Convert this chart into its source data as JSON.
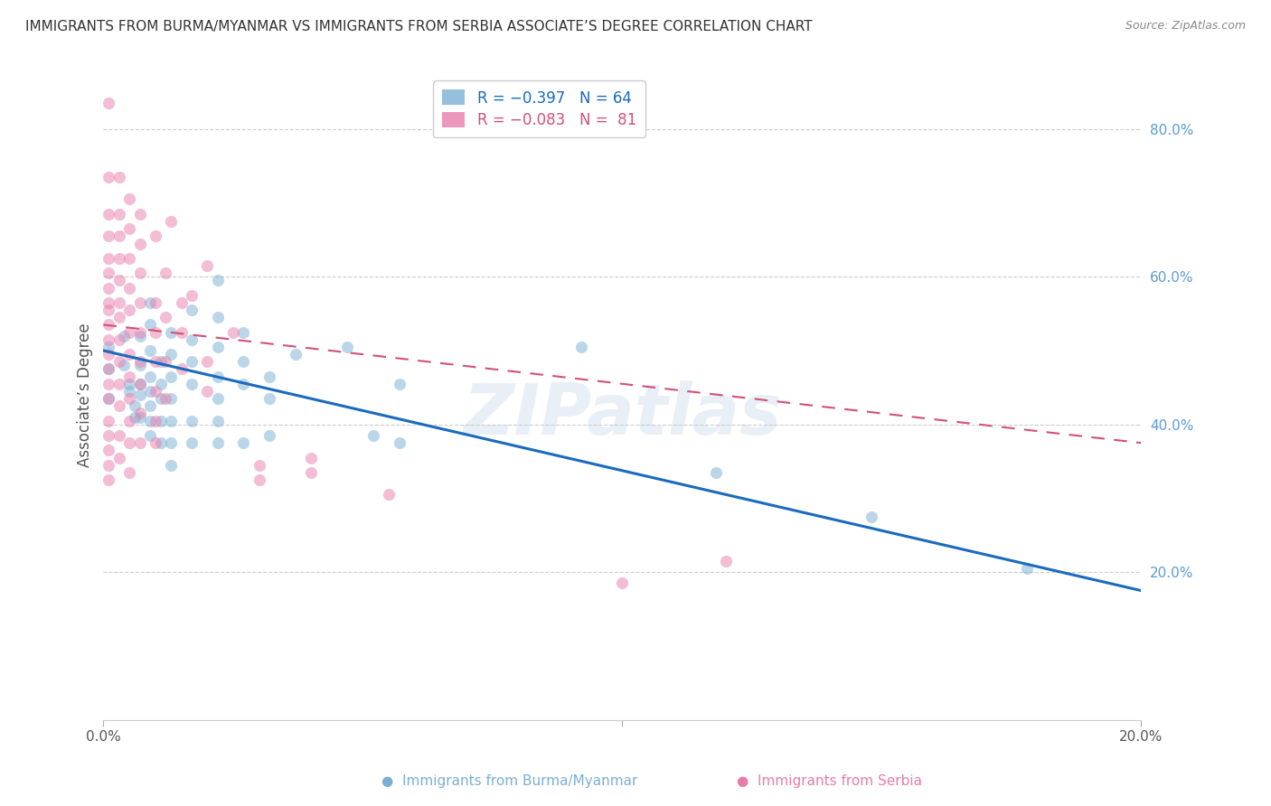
{
  "title": "IMMIGRANTS FROM BURMA/MYANMAR VS IMMIGRANTS FROM SERBIA ASSOCIATE’S DEGREE CORRELATION CHART",
  "source": "Source: ZipAtlas.com",
  "ylabel": "Associate’s Degree",
  "right_yticks": [
    20.0,
    40.0,
    60.0,
    80.0
  ],
  "x_min": 0.0,
  "x_max": 0.2,
  "y_min": 0.0,
  "y_max": 0.88,
  "blue_color": "#7bafd4",
  "pink_color": "#e87dac",
  "trendline_blue_color": "#1a6bbf",
  "trendline_pink_color": "#d44f7a",
  "trendline_blue": [
    [
      0.0,
      0.5
    ],
    [
      0.2,
      0.175
    ]
  ],
  "trendline_pink": [
    [
      0.0,
      0.535
    ],
    [
      0.2,
      0.375
    ]
  ],
  "watermark": "ZIPatlas",
  "blue_points": [
    [
      0.001,
      0.505
    ],
    [
      0.001,
      0.475
    ],
    [
      0.001,
      0.435
    ],
    [
      0.004,
      0.52
    ],
    [
      0.004,
      0.48
    ],
    [
      0.005,
      0.455
    ],
    [
      0.005,
      0.445
    ],
    [
      0.006,
      0.425
    ],
    [
      0.006,
      0.41
    ],
    [
      0.007,
      0.52
    ],
    [
      0.007,
      0.48
    ],
    [
      0.007,
      0.455
    ],
    [
      0.007,
      0.44
    ],
    [
      0.007,
      0.41
    ],
    [
      0.009,
      0.565
    ],
    [
      0.009,
      0.535
    ],
    [
      0.009,
      0.5
    ],
    [
      0.009,
      0.465
    ],
    [
      0.009,
      0.445
    ],
    [
      0.009,
      0.425
    ],
    [
      0.009,
      0.405
    ],
    [
      0.009,
      0.385
    ],
    [
      0.011,
      0.485
    ],
    [
      0.011,
      0.455
    ],
    [
      0.011,
      0.435
    ],
    [
      0.011,
      0.405
    ],
    [
      0.011,
      0.375
    ],
    [
      0.013,
      0.525
    ],
    [
      0.013,
      0.495
    ],
    [
      0.013,
      0.465
    ],
    [
      0.013,
      0.435
    ],
    [
      0.013,
      0.405
    ],
    [
      0.013,
      0.375
    ],
    [
      0.013,
      0.345
    ],
    [
      0.017,
      0.555
    ],
    [
      0.017,
      0.515
    ],
    [
      0.017,
      0.485
    ],
    [
      0.017,
      0.455
    ],
    [
      0.017,
      0.405
    ],
    [
      0.017,
      0.375
    ],
    [
      0.022,
      0.595
    ],
    [
      0.022,
      0.545
    ],
    [
      0.022,
      0.505
    ],
    [
      0.022,
      0.465
    ],
    [
      0.022,
      0.435
    ],
    [
      0.022,
      0.405
    ],
    [
      0.022,
      0.375
    ],
    [
      0.027,
      0.525
    ],
    [
      0.027,
      0.485
    ],
    [
      0.027,
      0.455
    ],
    [
      0.027,
      0.375
    ],
    [
      0.032,
      0.465
    ],
    [
      0.032,
      0.435
    ],
    [
      0.032,
      0.385
    ],
    [
      0.037,
      0.495
    ],
    [
      0.047,
      0.505
    ],
    [
      0.052,
      0.385
    ],
    [
      0.057,
      0.455
    ],
    [
      0.057,
      0.375
    ],
    [
      0.092,
      0.505
    ],
    [
      0.118,
      0.335
    ],
    [
      0.148,
      0.275
    ],
    [
      0.178,
      0.205
    ]
  ],
  "pink_points": [
    [
      0.001,
      0.835
    ],
    [
      0.001,
      0.735
    ],
    [
      0.001,
      0.685
    ],
    [
      0.001,
      0.655
    ],
    [
      0.001,
      0.625
    ],
    [
      0.001,
      0.605
    ],
    [
      0.001,
      0.585
    ],
    [
      0.001,
      0.565
    ],
    [
      0.001,
      0.555
    ],
    [
      0.001,
      0.535
    ],
    [
      0.001,
      0.515
    ],
    [
      0.001,
      0.495
    ],
    [
      0.001,
      0.475
    ],
    [
      0.001,
      0.455
    ],
    [
      0.001,
      0.435
    ],
    [
      0.001,
      0.405
    ],
    [
      0.001,
      0.385
    ],
    [
      0.001,
      0.365
    ],
    [
      0.001,
      0.345
    ],
    [
      0.001,
      0.325
    ],
    [
      0.003,
      0.735
    ],
    [
      0.003,
      0.685
    ],
    [
      0.003,
      0.655
    ],
    [
      0.003,
      0.625
    ],
    [
      0.003,
      0.595
    ],
    [
      0.003,
      0.565
    ],
    [
      0.003,
      0.545
    ],
    [
      0.003,
      0.515
    ],
    [
      0.003,
      0.485
    ],
    [
      0.003,
      0.455
    ],
    [
      0.003,
      0.425
    ],
    [
      0.003,
      0.385
    ],
    [
      0.003,
      0.355
    ],
    [
      0.005,
      0.705
    ],
    [
      0.005,
      0.665
    ],
    [
      0.005,
      0.625
    ],
    [
      0.005,
      0.585
    ],
    [
      0.005,
      0.555
    ],
    [
      0.005,
      0.525
    ],
    [
      0.005,
      0.495
    ],
    [
      0.005,
      0.465
    ],
    [
      0.005,
      0.435
    ],
    [
      0.005,
      0.405
    ],
    [
      0.005,
      0.375
    ],
    [
      0.005,
      0.335
    ],
    [
      0.007,
      0.685
    ],
    [
      0.007,
      0.645
    ],
    [
      0.007,
      0.605
    ],
    [
      0.007,
      0.565
    ],
    [
      0.007,
      0.525
    ],
    [
      0.007,
      0.485
    ],
    [
      0.007,
      0.455
    ],
    [
      0.007,
      0.415
    ],
    [
      0.007,
      0.375
    ],
    [
      0.01,
      0.655
    ],
    [
      0.01,
      0.565
    ],
    [
      0.01,
      0.525
    ],
    [
      0.01,
      0.485
    ],
    [
      0.01,
      0.445
    ],
    [
      0.01,
      0.405
    ],
    [
      0.01,
      0.375
    ],
    [
      0.012,
      0.605
    ],
    [
      0.012,
      0.545
    ],
    [
      0.012,
      0.485
    ],
    [
      0.012,
      0.435
    ],
    [
      0.013,
      0.675
    ],
    [
      0.015,
      0.565
    ],
    [
      0.015,
      0.525
    ],
    [
      0.015,
      0.475
    ],
    [
      0.017,
      0.575
    ],
    [
      0.02,
      0.615
    ],
    [
      0.02,
      0.485
    ],
    [
      0.02,
      0.445
    ],
    [
      0.025,
      0.525
    ],
    [
      0.03,
      0.345
    ],
    [
      0.03,
      0.325
    ],
    [
      0.04,
      0.355
    ],
    [
      0.04,
      0.335
    ],
    [
      0.055,
      0.305
    ],
    [
      0.1,
      0.185
    ],
    [
      0.12,
      0.215
    ]
  ]
}
